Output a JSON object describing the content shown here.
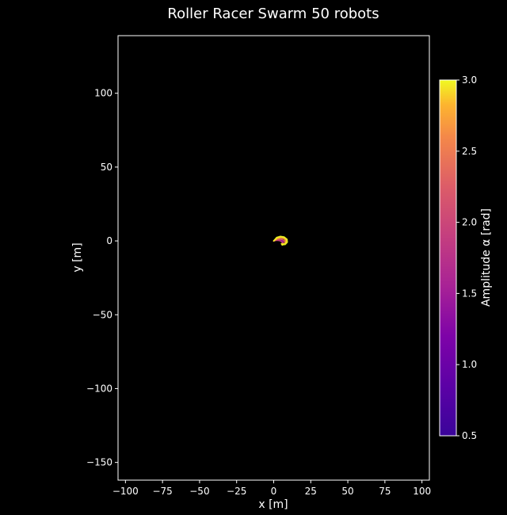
{
  "chart_data": {
    "type": "scatter",
    "title": "Roller Racer Swarm 50 robots",
    "xlabel": "x [m]",
    "ylabel": "y [m]",
    "xlim": [
      -105,
      105
    ],
    "ylim": [
      -162,
      139
    ],
    "xticks": [
      -100,
      -75,
      -50,
      -25,
      0,
      25,
      50,
      75,
      100
    ],
    "xtick_labels": [
      "−100",
      "−75",
      "−50",
      "−25",
      "0",
      "25",
      "50",
      "75",
      "100"
    ],
    "yticks": [
      -150,
      -100,
      -50,
      0,
      50,
      100
    ],
    "ytick_labels": [
      "−150",
      "−100",
      "−50",
      "0",
      "50",
      "100"
    ],
    "grid": false,
    "background": "#000000",
    "colormap": "plasma",
    "colorbar": {
      "label": "Amplitude α [rad]",
      "min": 0.5,
      "max": 3.0,
      "ticks": [
        0.5,
        1.0,
        1.5,
        2.0,
        2.5,
        3.0
      ],
      "tick_labels": [
        "0.5",
        "1.0",
        "1.5",
        "2.0",
        "2.5",
        "3.0"
      ]
    },
    "trajectories": [
      {
        "alpha": 0.5,
        "points": [
          [
            0,
            0
          ],
          [
            1.2,
            0.9
          ],
          [
            2.6,
            1.5
          ],
          [
            4.0,
            1.6
          ],
          [
            5.4,
            1.1
          ]
        ]
      },
      {
        "alpha": 0.9,
        "points": [
          [
            0,
            0
          ],
          [
            1.5,
            0.8
          ],
          [
            3.0,
            1.2
          ],
          [
            4.6,
            1.0
          ],
          [
            6.0,
            0.2
          ]
        ]
      },
      {
        "alpha": 1.3,
        "points": [
          [
            0,
            0
          ],
          [
            1.8,
            0.6
          ],
          [
            3.5,
            0.7
          ],
          [
            5.0,
            0.2
          ],
          [
            6.2,
            -0.8
          ]
        ]
      },
      {
        "alpha": 1.7,
        "points": [
          [
            0,
            0
          ],
          [
            2.0,
            0.4
          ],
          [
            3.9,
            0.2
          ],
          [
            5.5,
            -0.6
          ],
          [
            6.5,
            -1.8
          ]
        ]
      },
      {
        "alpha": 2.0,
        "points": [
          [
            0,
            0
          ],
          [
            2.2,
            0.9
          ],
          [
            4.2,
            1.2
          ],
          [
            6.0,
            0.8
          ],
          [
            7.4,
            -0.3
          ]
        ]
      },
      {
        "alpha": 2.3,
        "points": [
          [
            0,
            0
          ],
          [
            2.4,
            1.5
          ],
          [
            4.6,
            2.0
          ],
          [
            6.6,
            1.6
          ],
          [
            8.0,
            0.4
          ],
          [
            8.2,
            -1.0
          ]
        ]
      },
      {
        "alpha": 2.6,
        "points": [
          [
            0,
            0
          ],
          [
            2.5,
            1.8
          ],
          [
            5.0,
            2.4
          ],
          [
            7.1,
            1.9
          ],
          [
            8.4,
            0.5
          ],
          [
            8.0,
            -1.2
          ],
          [
            6.6,
            -2.0
          ]
        ]
      },
      {
        "alpha": 2.8,
        "points": [
          [
            0,
            0
          ],
          [
            2.3,
            2.1
          ],
          [
            4.8,
            2.8
          ],
          [
            7.2,
            2.3
          ],
          [
            8.8,
            0.8
          ],
          [
            8.6,
            -1.0
          ],
          [
            7.0,
            -2.2
          ],
          [
            5.4,
            -2.0
          ]
        ]
      },
      {
        "alpha": 3.0,
        "points": [
          [
            0,
            0
          ],
          [
            2.0,
            2.4
          ],
          [
            4.5,
            3.1
          ],
          [
            7.0,
            2.7
          ],
          [
            9.0,
            1.1
          ],
          [
            9.2,
            -0.9
          ],
          [
            7.8,
            -2.4
          ],
          [
            5.8,
            -2.6
          ]
        ]
      }
    ]
  }
}
